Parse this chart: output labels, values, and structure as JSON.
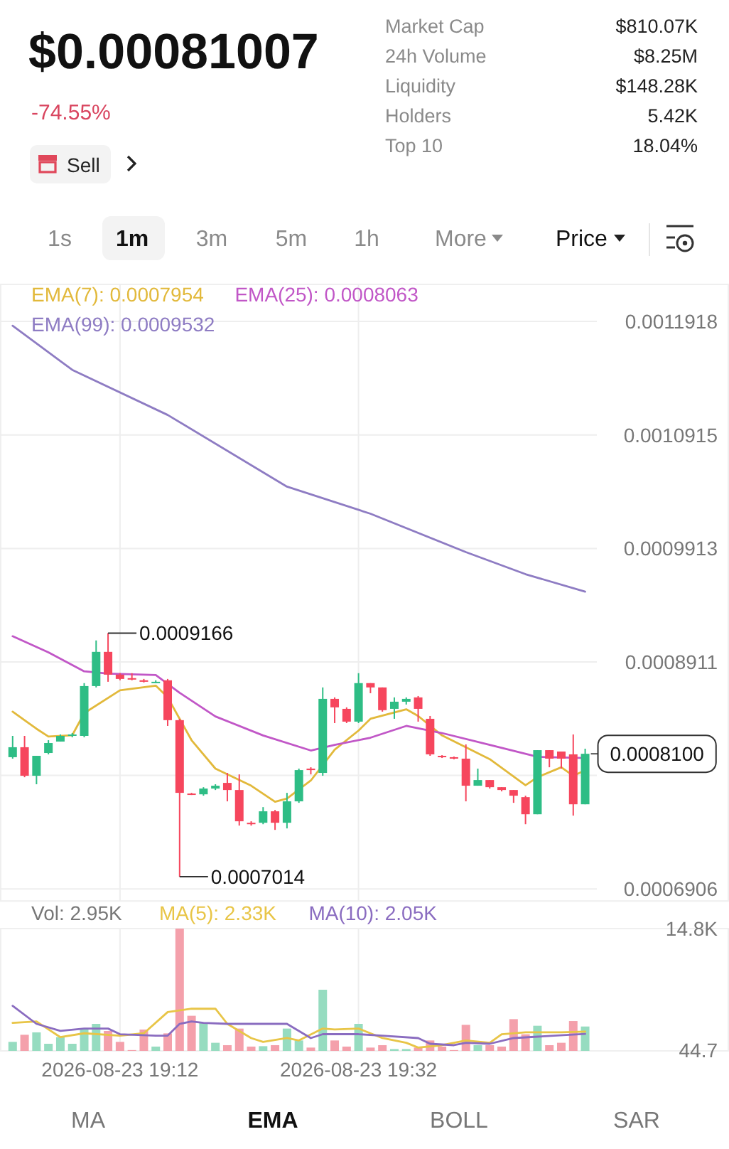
{
  "chart_data": [
    {
      "type": "other",
      "title": "$0.00081007",
      "subtitle": "-74.55%",
      "annotations": [
        "Market Cap",
        "$810.07K",
        "24h Volume",
        "$8.25M",
        "Liquidity",
        "$148.28K",
        "Holders",
        "5.42K",
        "Top 10",
        "18.04%",
        "Sell",
        "1s",
        "1m",
        "3m",
        "5m",
        "1h",
        "More",
        "Price",
        "MA",
        "EMA",
        "BOLL",
        "SAR"
      ]
    },
    {
      "type": "candlestick",
      "x": [
        "2026-08-23T19:03",
        "2026-08-23T19:04",
        "2026-08-23T19:05",
        "2026-08-23T19:06",
        "2026-08-23T19:07",
        "2026-08-23T19:08",
        "2026-08-23T19:09",
        "2026-08-23T19:10",
        "2026-08-23T19:11",
        "2026-08-23T19:12",
        "2026-08-23T19:13",
        "2026-08-23T19:14",
        "2026-08-23T19:15",
        "2026-08-23T19:16",
        "2026-08-23T19:17",
        "2026-08-23T19:18",
        "2026-08-23T19:19",
        "2026-08-23T19:20",
        "2026-08-23T19:21",
        "2026-08-23T19:22",
        "2026-08-23T19:23",
        "2026-08-23T19:24",
        "2026-08-23T19:25",
        "2026-08-23T19:26",
        "2026-08-23T19:27",
        "2026-08-23T19:28",
        "2026-08-23T19:29",
        "2026-08-23T19:30",
        "2026-08-23T19:31",
        "2026-08-23T19:32",
        "2026-08-23T19:33",
        "2026-08-23T19:34",
        "2026-08-23T19:35",
        "2026-08-23T19:36",
        "2026-08-23T19:37",
        "2026-08-23T19:38",
        "2026-08-23T19:39",
        "2026-08-23T19:40",
        "2026-08-23T19:41",
        "2026-08-23T19:42",
        "2026-08-23T19:43",
        "2026-08-23T19:44",
        "2026-08-23T19:45",
        "2026-08-23T19:46",
        "2026-08-23T19:47",
        "2026-08-23T19:48",
        "2026-08-23T19:49",
        "2026-08-23T19:50",
        "2026-08-23T19:51"
      ],
      "ohlc": [
        [
          0.000807,
          0.0008258,
          0.0008057,
          0.0008158
        ],
        [
          0.0008158,
          0.0008258,
          0.0007893,
          0.0007906
        ],
        [
          0.0007906,
          0.0008082,
          0.0007831,
          0.0008082
        ],
        [
          0.0008107,
          0.000822,
          0.0008095,
          0.0008195
        ],
        [
          0.0008208,
          0.0008271,
          0.0008208,
          0.0008258
        ],
        [
          0.0008258,
          0.0008283,
          0.0008246,
          0.0008271
        ],
        [
          0.0008258,
          0.0008724,
          0.0008246,
          0.0008698
        ],
        [
          0.0008698,
          0.0009101,
          0.0008686,
          0.0009
        ],
        [
          0.0009,
          0.0009166,
          0.0008736,
          0.0008799
        ],
        [
          0.0008799,
          0.0008812,
          0.0008749,
          0.0008761
        ],
        [
          0.0008768,
          0.0008812,
          0.0008749,
          0.0008755
        ],
        [
          0.0008749,
          0.0008761,
          0.000873,
          0.0008736
        ],
        [
          0.000873,
          0.0008749,
          0.0008724,
          0.0008736
        ],
        [
          0.0008749,
          0.0008761,
          0.0008346,
          0.0008397
        ],
        [
          0.0008397,
          0.0008409,
          0.0007014,
          0.0007755
        ],
        [
          0.0007749,
          0.0007755,
          0.0007736,
          0.0007742
        ],
        [
          0.0007742,
          0.0007805,
          0.000773,
          0.0007793
        ],
        [
          0.0007793,
          0.0007831,
          0.000778,
          0.0007818
        ],
        [
          0.0007843,
          0.0007931,
          0.000768,
          0.000778
        ],
        [
          0.000778,
          0.0007918,
          0.0007466,
          0.0007504
        ],
        [
          0.0007491,
          0.0007504,
          0.0007466,
          0.0007478
        ],
        [
          0.0007491,
          0.0007629,
          0.0007478,
          0.0007592
        ],
        [
          0.0007592,
          0.0007604,
          0.0007428,
          0.0007491
        ],
        [
          0.0007491,
          0.0007755,
          0.0007441,
          0.000768
        ],
        [
          0.000768,
          0.0007969,
          0.0007667,
          0.0007956
        ],
        [
          0.0007969,
          0.0007981,
          0.0007918,
          0.0007956
        ],
        [
          0.0007931,
          0.0008686,
          0.0007906,
          0.0008585
        ],
        [
          0.0008585,
          0.0008598,
          0.0008371,
          0.000851
        ],
        [
          0.0008497,
          0.000851,
          0.0008371,
          0.0008384
        ],
        [
          0.0008384,
          0.0008812,
          0.0008371,
          0.0008724
        ],
        [
          0.0008724,
          0.0008724,
          0.0008635,
          0.0008686
        ],
        [
          0.0008686,
          0.0008686,
          0.0008472,
          0.0008485
        ],
        [
          0.0008497,
          0.0008598,
          0.0008409,
          0.000856
        ],
        [
          0.000856,
          0.0008598,
          0.0008535,
          0.0008585
        ],
        [
          0.0008598,
          0.000861,
          0.0008384,
          0.0008497
        ],
        [
          0.0008409,
          0.0008434,
          0.0008082,
          0.0008095
        ],
        [
          0.0008082,
          0.0008088,
          0.0008063,
          0.000807
        ],
        [
          0.000807,
          0.0008076,
          0.0008051,
          0.0008057
        ],
        [
          0.0008057,
          0.0008183,
          0.000768,
          0.0007818
        ],
        [
          0.0007818,
          0.0007969,
          0.0007818,
          0.0007868
        ],
        [
          0.0007868,
          0.0007868,
          0.0007793,
          0.0007805
        ],
        [
          0.0007805,
          0.0007805,
          0.0007768,
          0.000778
        ],
        [
          0.000778,
          0.000778,
          0.0007667,
          0.000773
        ],
        [
          0.0007717,
          0.000773,
          0.0007478,
          0.0007566
        ],
        [
          0.0007566,
          0.0008132,
          0.0007566,
          0.0008132
        ],
        [
          0.0008132,
          0.0008132,
          0.0007981,
          0.0008057
        ],
        [
          0.000812,
          0.000812,
          0.0007969,
          0.0008057
        ],
        [
          0.0008095,
          0.0008271,
          0.0007554,
          0.0007654
        ],
        [
          0.0007654,
          0.0008145,
          0.0007654,
          0.00081
        ]
      ],
      "series": [
        {
          "type": "line",
          "name": "EMA(7): 0.0007954",
          "color": "#e2b93b",
          "x": [
            "2026-08-23T19:03",
            "2026-08-23T19:05",
            "2026-08-23T19:06",
            "2026-08-23T19:08",
            "2026-08-23T19:09",
            "2026-08-23T19:12",
            "2026-08-23T19:15",
            "2026-08-23T19:16",
            "2026-08-23T19:18",
            "2026-08-23T19:20",
            "2026-08-23T19:23",
            "2026-08-23T19:25",
            "2026-08-23T19:26",
            "2026-08-23T19:28",
            "2026-08-23T19:30",
            "2026-08-23T19:32",
            "2026-08-23T19:33",
            "2026-08-23T19:36",
            "2026-08-23T19:37",
            "2026-08-23T19:39",
            "2026-08-23T19:43",
            "2026-08-23T19:46",
            "2026-08-23T19:47",
            "2026-08-23T19:49",
            "2026-08-23T19:50",
            "2026-08-23T19:51"
          ],
          "values": [
            0.0008472,
            0.0008321,
            0.0008252,
            0.0008264,
            0.0008459,
            0.0008661,
            0.0008702,
            0.0008598,
            0.000822,
            0.0007969,
            0.0007818,
            0.0007676,
            0.0007705,
            0.0007864,
            0.0008136,
            0.0008305,
            0.0008409,
            0.0008493,
            0.0008434,
            0.0008262,
            0.0008053,
            0.0007822,
            0.0007893,
            0.0007981,
            0.0007906,
            0.0007954
          ]
        },
        {
          "type": "line",
          "name": "EMA(25): 0.0008063",
          "color": "#c157c7",
          "x": [
            "2026-08-23T19:03",
            "2026-08-23T19:06",
            "2026-08-23T19:09",
            "2026-08-23T19:11",
            "2026-08-23T19:15",
            "2026-08-23T19:17",
            "2026-08-23T19:20",
            "2026-08-23T19:24",
            "2026-08-23T19:28",
            "2026-08-23T19:30",
            "2026-08-23T19:33",
            "2026-08-23T19:36",
            "2026-08-23T19:39",
            "2026-08-23T19:43",
            "2026-08-23T19:47",
            "2026-08-23T19:51"
          ],
          "values": [
            0.0009138,
            0.0008996,
            0.0008828,
            0.0008808,
            0.0008795,
            0.0008639,
            0.000843,
            0.0008262,
            0.0008129,
            0.0008179,
            0.0008242,
            0.0008346,
            0.0008283,
            0.0008179,
            0.0008073,
            0.0008063
          ]
        },
        {
          "type": "line",
          "name": "EMA(99): 0.0009532",
          "color": "#8e7cc3",
          "x": [
            "2026-08-23T19:03",
            "2026-08-23T19:08",
            "2026-08-23T19:16",
            "2026-08-23T19:26",
            "2026-08-23T19:33",
            "2026-08-23T19:41",
            "2026-08-23T19:46",
            "2026-08-23T19:51"
          ],
          "values": [
            0.001188,
            0.001149,
            0.0011092,
            0.0010459,
            0.001022,
            0.0009881,
            0.0009686,
            0.0009532
          ]
        }
      ],
      "xlim": [
        "2026-08-23T19:02",
        "2026-08-23T20:03"
      ],
      "xticks": [
        {
          "value": "2026-08-23T19:12",
          "label": null
        },
        {
          "value": "2026-08-23T19:32",
          "label": null
        }
      ],
      "ylim": [
        0.00068,
        0.0012245
      ],
      "yticks": [
        0.0011918,
        0.0010915,
        0.0009913,
        0.0008911,
        {
          "value": 0.0007909,
          "label": null
        },
        0.0006906
      ],
      "annotations": [
        {
          "text": "0.0009166",
          "x": "2026-08-23T19:11",
          "y": 0.0009166
        },
        {
          "text": "0.0007014",
          "x": "2026-08-23T19:17",
          "y": 0.0007014
        },
        {
          "text": "0.0008100",
          "x": "2026-08-23T19:51",
          "y": 0.00081
        }
      ],
      "grid": true,
      "legend": "top left",
      "tick_labels": "y"
    },
    {
      "type": "bar",
      "x": [
        "2026-08-23T19:03",
        "2026-08-23T19:04",
        "2026-08-23T19:05",
        "2026-08-23T19:06",
        "2026-08-23T19:07",
        "2026-08-23T19:08",
        "2026-08-23T19:09",
        "2026-08-23T19:10",
        "2026-08-23T19:11",
        "2026-08-23T19:12",
        "2026-08-23T19:13",
        "2026-08-23T19:14",
        "2026-08-23T19:15",
        "2026-08-23T19:16",
        "2026-08-23T19:17",
        "2026-08-23T19:18",
        "2026-08-23T19:19",
        "2026-08-23T19:20",
        "2026-08-23T19:21",
        "2026-08-23T19:22",
        "2026-08-23T19:23",
        "2026-08-23T19:24",
        "2026-08-23T19:25",
        "2026-08-23T19:26",
        "2026-08-23T19:27",
        "2026-08-23T19:28",
        "2026-08-23T19:29",
        "2026-08-23T19:30",
        "2026-08-23T19:31",
        "2026-08-23T19:32",
        "2026-08-23T19:33",
        "2026-08-23T19:34",
        "2026-08-23T19:35",
        "2026-08-23T19:36",
        "2026-08-23T19:37",
        "2026-08-23T19:38",
        "2026-08-23T19:39",
        "2026-08-23T19:40",
        "2026-08-23T19:41",
        "2026-08-23T19:42",
        "2026-08-23T19:43",
        "2026-08-23T19:44",
        "2026-08-23T19:45",
        "2026-08-23T19:46",
        "2026-08-23T19:47",
        "2026-08-23T19:48",
        "2026-08-23T19:49",
        "2026-08-23T19:50",
        "2026-08-23T19:51"
      ],
      "series": [
        {
          "type": "bar",
          "values": [
            1090,
            1950,
            2240,
            860,
            1660,
            860,
            2700,
            3270,
            2410,
            1090,
            100,
            2580,
            520,
            2120,
            14800,
            4250,
            3390,
            980,
            690,
            2700,
            520,
            570,
            690,
            2700,
            1260,
            400,
            7400,
            1260,
            520,
            3270,
            400,
            690,
            220,
            220,
            400,
            1260,
            520,
            100,
            3150,
            690,
            690,
            520,
            3840,
            2010,
            3040,
            690,
            980,
            3610,
            2950
          ],
          "colors": [
            "#96dcc0",
            "#f4a0ab",
            "#96dcc0",
            "#96dcc0",
            "#96dcc0",
            "#96dcc0",
            "#96dcc0",
            "#96dcc0",
            "#f4a0ab",
            "#f4a0ab",
            "#f4a0ab",
            "#f4a0ab",
            "#96dcc0",
            "#f4a0ab",
            "#f4a0ab",
            "#f4a0ab",
            "#96dcc0",
            "#96dcc0",
            "#f4a0ab",
            "#f4a0ab",
            "#f4a0ab",
            "#96dcc0",
            "#f4a0ab",
            "#96dcc0",
            "#96dcc0",
            "#f4a0ab",
            "#96dcc0",
            "#f4a0ab",
            "#f4a0ab",
            "#96dcc0",
            "#f4a0ab",
            "#f4a0ab",
            "#96dcc0",
            "#96dcc0",
            "#f4a0ab",
            "#f4a0ab",
            "#f4a0ab",
            "#f4a0ab",
            "#f4a0ab",
            "#96dcc0",
            "#f4a0ab",
            "#f4a0ab",
            "#f4a0ab",
            "#f4a0ab",
            "#96dcc0",
            "#f4a0ab",
            "#f4a0ab",
            "#f4a0ab",
            "#96dcc0"
          ]
        },
        {
          "type": "line",
          "name": "MA(5): 2.33K",
          "color": "#e8c547",
          "x": [
            "2026-08-23T19:03",
            "2026-08-23T19:05",
            "2026-08-23T19:07",
            "2026-08-23T19:09",
            "2026-08-23T19:12",
            "2026-08-23T19:14",
            "2026-08-23T19:16",
            "2026-08-23T19:18",
            "2026-08-23T19:20",
            "2026-08-23T19:21",
            "2026-08-23T19:23",
            "2026-08-23T19:24",
            "2026-08-23T19:26",
            "2026-08-23T19:27",
            "2026-08-23T19:29",
            "2026-08-23T19:30",
            "2026-08-23T19:32",
            "2026-08-23T19:34",
            "2026-08-23T19:36",
            "2026-08-23T19:37",
            "2026-08-23T19:39",
            "2026-08-23T19:41",
            "2026-08-23T19:43",
            "2026-08-23T19:44",
            "2026-08-23T19:46",
            "2026-08-23T19:49",
            "2026-08-23T19:51"
          ],
          "values": [
            3390,
            3560,
            1660,
            2130,
            1840,
            2130,
            4700,
            5100,
            5100,
            3270,
            1550,
            1090,
            1550,
            1260,
            2700,
            2590,
            2700,
            1550,
            980,
            400,
            690,
            1260,
            980,
            2020,
            2250,
            2250,
            2330
          ]
        },
        {
          "type": "line",
          "name": "MA(10): 2.05K",
          "color": "#8a6cc0",
          "x": [
            "2026-08-23T19:03",
            "2026-08-23T19:05",
            "2026-08-23T19:07",
            "2026-08-23T19:09",
            "2026-08-23T19:11",
            "2026-08-23T19:12",
            "2026-08-23T19:15",
            "2026-08-23T19:16",
            "2026-08-23T19:17",
            "2026-08-23T19:18",
            "2026-08-23T19:19",
            "2026-08-23T19:21",
            "2026-08-23T19:22",
            "2026-08-23T19:26",
            "2026-08-23T19:28",
            "2026-08-23T19:29",
            "2026-08-23T19:32",
            "2026-08-23T19:34",
            "2026-08-23T19:37",
            "2026-08-23T19:38",
            "2026-08-23T19:40",
            "2026-08-23T19:41",
            "2026-08-23T19:43",
            "2026-08-23T19:45",
            "2026-08-23T19:47",
            "2026-08-23T19:51"
          ],
          "values": [
            5450,
            3270,
            2420,
            2700,
            2700,
            2020,
            1840,
            1840,
            3270,
            3560,
            3390,
            3270,
            3270,
            3270,
            1550,
            2020,
            2020,
            1840,
            1550,
            860,
            690,
            980,
            860,
            1550,
            1720,
            2050
          ]
        }
      ],
      "xlim": [
        "2026-08-23T19:02",
        "2026-08-23T20:03"
      ],
      "xticks": [
        {
          "value": "2026-08-23T19:12",
          "label": "2026-08-23 19:12"
        },
        {
          "value": "2026-08-23T19:32",
          "label": "2026-08-23 19:32"
        }
      ],
      "ylim": [
        0,
        14800
      ],
      "yticks": [
        {
          "value": 14800,
          "label": "14.8K"
        },
        44.7
      ],
      "annotations": [
        "Vol: 2.95K"
      ],
      "grid": "x",
      "legend": "top left"
    }
  ]
}
